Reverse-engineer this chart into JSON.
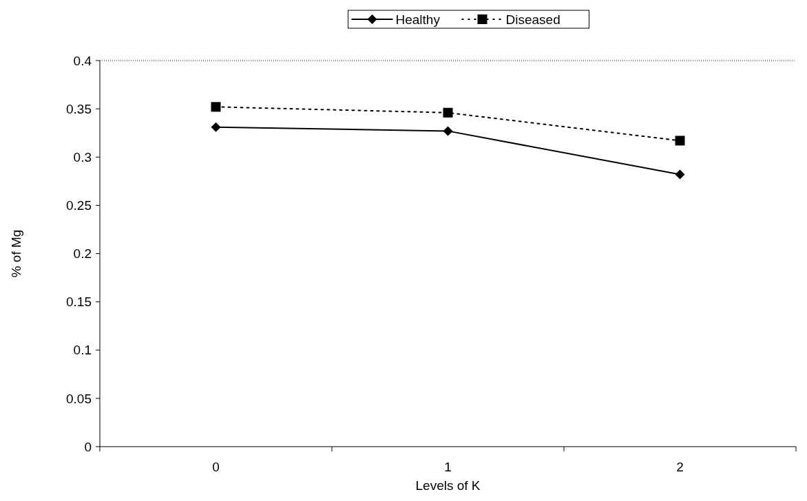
{
  "chart_data": {
    "type": "line",
    "xlabel": "Levels of K",
    "ylabel": "% of Mg",
    "categories": [
      "0",
      "1",
      "2"
    ],
    "series": [
      {
        "name": "Healthy",
        "color": "#000000",
        "values": [
          0.331,
          0.327,
          0.282
        ],
        "marker": "diamond",
        "line_style": "solid"
      },
      {
        "name": "Diseased",
        "color": "#000000",
        "values": [
          0.352,
          0.346,
          0.317
        ],
        "marker": "square",
        "line_style": "dotted"
      }
    ],
    "ylim": [
      0,
      0.4
    ],
    "yticks": [
      0,
      0.05,
      0.1,
      0.15,
      0.2,
      0.25,
      0.3,
      0.35,
      0.4
    ],
    "legend": "top",
    "grid": false
  }
}
